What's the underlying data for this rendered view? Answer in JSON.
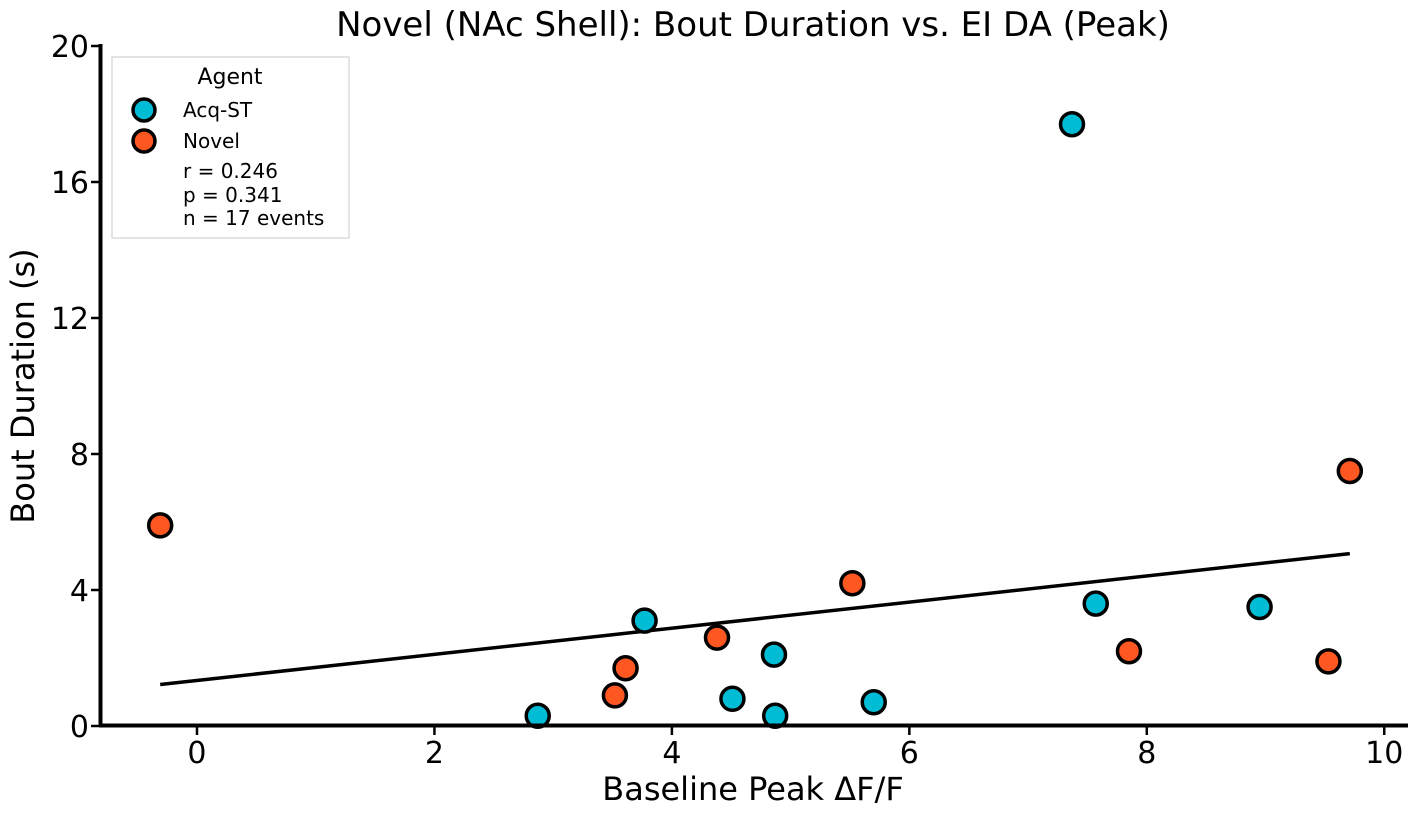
{
  "chart_data": {
    "type": "scatter",
    "title": "Novel (NAc Shell): Bout Duration vs. EI DA (Peak)",
    "xlabel": "Baseline Peak ΔF/F",
    "ylabel": "Bout Duration (s)",
    "xlim": [
      -0.8,
      10.2
    ],
    "ylim": [
      0,
      20
    ],
    "xticks": [
      0,
      2,
      4,
      6,
      8,
      10
    ],
    "yticks": [
      0,
      4,
      8,
      12,
      16,
      20
    ],
    "grid": false,
    "legend": {
      "title": "Agent",
      "position": "top-left",
      "stats": [
        "r = 0.246",
        "p = 0.341",
        "n = 17 events"
      ]
    },
    "series": [
      {
        "name": "Acq-ST",
        "color": "#00bcd4",
        "points": [
          {
            "x": 2.87,
            "y": 0.3
          },
          {
            "x": 3.77,
            "y": 3.1
          },
          {
            "x": 4.51,
            "y": 0.8
          },
          {
            "x": 4.86,
            "y": 2.1
          },
          {
            "x": 4.87,
            "y": 0.3
          },
          {
            "x": 5.7,
            "y": 0.7
          },
          {
            "x": 7.37,
            "y": 17.7
          },
          {
            "x": 7.57,
            "y": 3.6
          },
          {
            "x": 8.95,
            "y": 3.5
          }
        ]
      },
      {
        "name": "Novel",
        "color": "#ff5722",
        "points": [
          {
            "x": -0.31,
            "y": 5.9
          },
          {
            "x": 3.52,
            "y": 0.9
          },
          {
            "x": 3.61,
            "y": 1.7
          },
          {
            "x": 4.38,
            "y": 2.6
          },
          {
            "x": 5.52,
            "y": 4.2
          },
          {
            "x": 7.85,
            "y": 2.2
          },
          {
            "x": 9.53,
            "y": 1.9
          },
          {
            "x": 9.71,
            "y": 7.5
          }
        ]
      }
    ],
    "fit_line": {
      "x": [
        -0.31,
        9.71
      ],
      "y": [
        1.22,
        5.07
      ],
      "color": "#000000"
    }
  }
}
